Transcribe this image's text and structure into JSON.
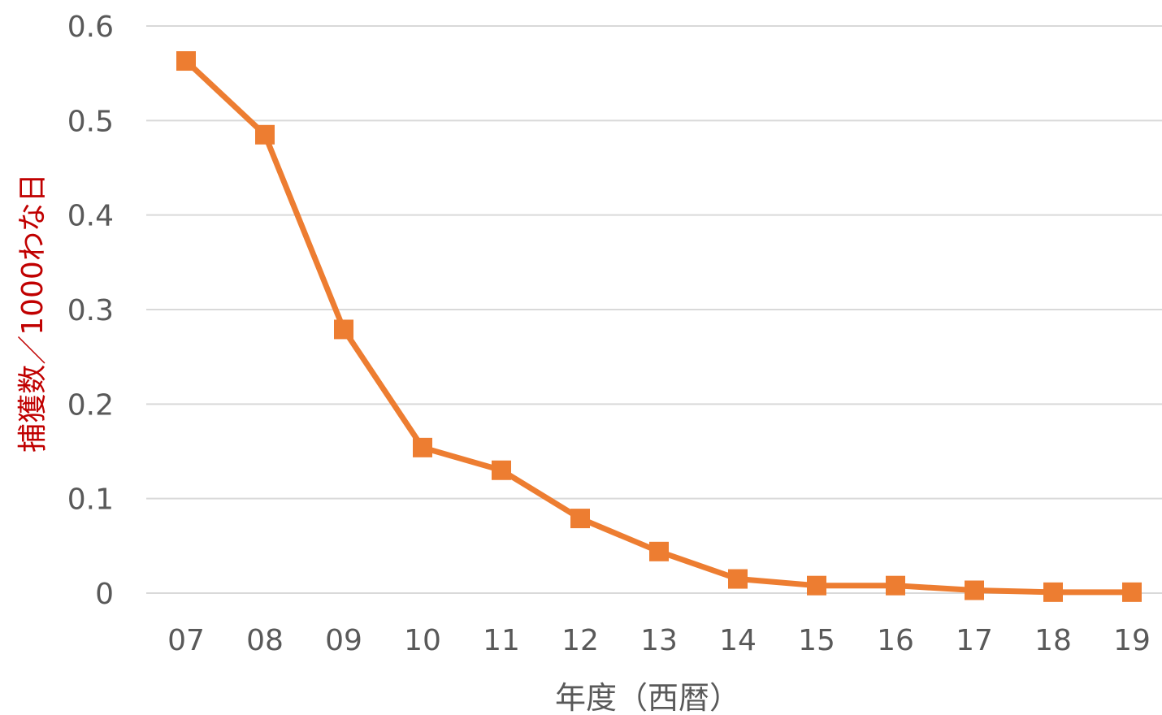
{
  "chart_data": {
    "type": "line",
    "title": "",
    "xlabel": "年度（西暦）",
    "ylabel": "捕獲数／1000わな日",
    "categories": [
      "07",
      "08",
      "09",
      "10",
      "11",
      "12",
      "13",
      "14",
      "15",
      "16",
      "17",
      "18",
      "19"
    ],
    "y_ticks": [
      "0",
      "0.1",
      "0.2",
      "0.3",
      "0.4",
      "0.5",
      "0.6"
    ],
    "ylim": [
      0,
      0.6
    ],
    "grid": true,
    "legend": "none",
    "series": [
      {
        "values": [
          0.563,
          0.485,
          0.279,
          0.154,
          0.13,
          0.079,
          0.044,
          0.015,
          0.008,
          0.008,
          0.003,
          0.001,
          0.001
        ],
        "color": "#ed7d31",
        "marker": "square"
      }
    ]
  }
}
